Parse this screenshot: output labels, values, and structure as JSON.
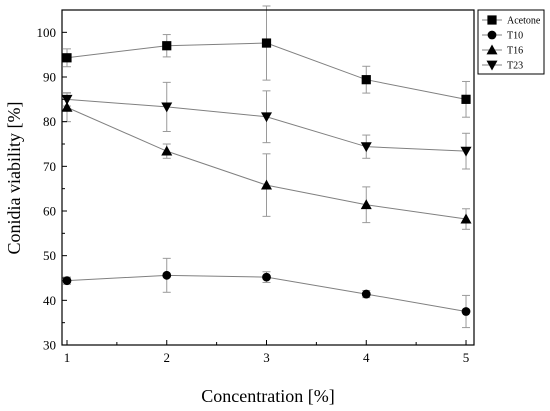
{
  "chart_data": {
    "type": "line",
    "title": "",
    "xlabel": "Concentration [%]",
    "ylabel": "Conidia viability [%]",
    "x": [
      1,
      2,
      3,
      4,
      5
    ],
    "xlim": [
      0.95,
      5.08
    ],
    "ylim": [
      30,
      105
    ],
    "x_ticks": [
      1,
      2,
      3,
      4,
      5
    ],
    "y_ticks": [
      30,
      40,
      50,
      60,
      70,
      80,
      90,
      100
    ],
    "grid": false,
    "legend_position": "top-right",
    "line_color": "#808080",
    "marker_color": "#000000",
    "series": [
      {
        "name": "Acetone",
        "marker": "square",
        "values": [
          94.3,
          97.0,
          97.6,
          89.4,
          85.0
        ],
        "errors": [
          2.0,
          2.5,
          8.3,
          3.0,
          4.0
        ]
      },
      {
        "name": "T10",
        "marker": "circle",
        "values": [
          44.4,
          45.6,
          45.2,
          41.4,
          37.5
        ],
        "errors": [
          0.8,
          3.8,
          1.2,
          0.8,
          3.6
        ]
      },
      {
        "name": "T16",
        "marker": "triangle-up",
        "values": [
          83.2,
          73.4,
          65.8,
          61.4,
          58.2
        ],
        "errors": [
          3.2,
          1.6,
          7.0,
          4.0,
          2.3
        ]
      },
      {
        "name": "T23",
        "marker": "triangle-down",
        "values": [
          85.0,
          83.3,
          81.1,
          74.4,
          73.4
        ],
        "errors": [
          1.5,
          5.5,
          5.8,
          2.6,
          4.0
        ]
      }
    ]
  }
}
